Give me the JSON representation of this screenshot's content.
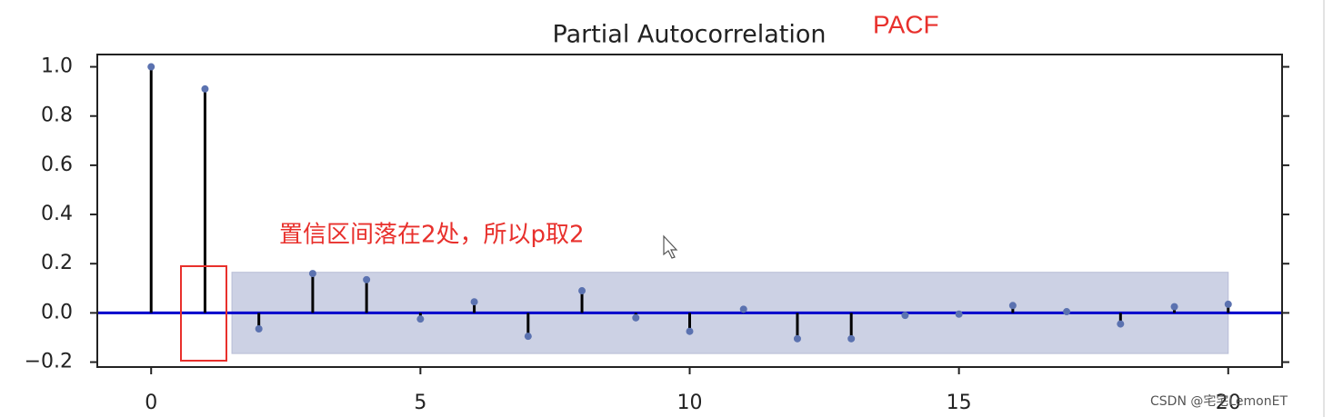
{
  "chart_data": {
    "type": "stem",
    "title": "Partial Autocorrelation",
    "annotations": [
      "PACF",
      "置信区间落在2处，所以p取2"
    ],
    "watermark": "CSDN @宅宅LemonET",
    "x": [
      0,
      1,
      2,
      3,
      4,
      5,
      6,
      7,
      8,
      9,
      10,
      11,
      12,
      13,
      14,
      15,
      16,
      17,
      18,
      19,
      20
    ],
    "values": [
      1.0,
      0.91,
      -0.065,
      0.16,
      0.135,
      -0.025,
      0.045,
      -0.095,
      0.09,
      -0.02,
      -0.075,
      0.015,
      -0.105,
      -0.105,
      -0.01,
      -0.005,
      0.03,
      0.005,
      -0.045,
      0.025,
      0.035
    ],
    "color": "#5b72b0",
    "stem_color": "#000000",
    "zero_line_color": "#0000cc",
    "band": {
      "x": [
        1.5,
        20
      ],
      "y": [
        -0.165,
        0.165
      ],
      "color": "#ccd1e4"
    },
    "xlim": [
      -1,
      21
    ],
    "ylim": [
      -0.22,
      1.05
    ],
    "xticks": [
      0,
      5,
      10,
      15,
      20
    ],
    "yticks": [
      {
        "value": -0.2,
        "label": "−0.2"
      },
      {
        "value": 0,
        "label": "0.0"
      },
      {
        "value": 0.2,
        "label": "0.2"
      },
      {
        "value": 0.4,
        "label": "0.4"
      },
      {
        "value": 0.6,
        "label": "0.6"
      },
      {
        "value": 0.8,
        "label": "0.8"
      },
      {
        "value": 1.0,
        "label": "1.0"
      }
    ]
  }
}
